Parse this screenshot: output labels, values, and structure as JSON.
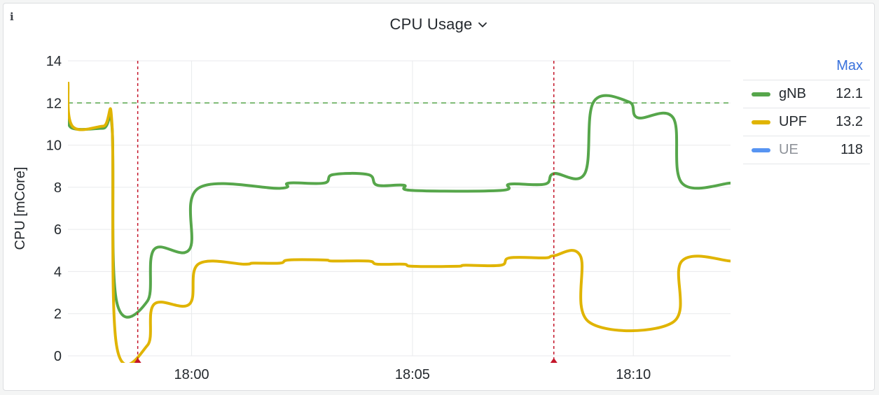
{
  "panel": {
    "title": "CPU Usage",
    "info_icon": "info-icon",
    "menu_icon": "chevron-down-icon"
  },
  "legend": {
    "header": "Max",
    "items": [
      {
        "name": "gNB",
        "value": "12.1",
        "color": "#56a64b",
        "dimmed": false
      },
      {
        "name": "UPF",
        "value": "13.2",
        "color": "#e0b400",
        "dimmed": false
      },
      {
        "name": "UE",
        "value": "118",
        "color": "#5794f2",
        "dimmed": true
      }
    ]
  },
  "chart_data": {
    "type": "line",
    "ylabel": "CPU [mCore]",
    "ylim": [
      0,
      14
    ],
    "yticks": [
      "0",
      "2",
      "4",
      "6",
      "8",
      "10",
      "12",
      "14"
    ],
    "xlim_minutes": [
      -2.8,
      12.2
    ],
    "xticks": [
      {
        "label": "18:00",
        "t": 0
      },
      {
        "label": "18:05",
        "t": 5
      },
      {
        "label": "18:10",
        "t": 10
      }
    ],
    "threshold": {
      "value": 12,
      "color": "#56a64b",
      "style": "dashed"
    },
    "annotations": [
      {
        "t": -1.22,
        "color": "#c4162a"
      },
      {
        "t": 8.2,
        "color": "#c4162a"
      }
    ],
    "series": [
      {
        "name": "gNB",
        "color": "#56a64b",
        "points": [
          [
            -2.8,
            11.5
          ],
          [
            -2.7,
            10.8
          ],
          [
            -2.0,
            10.8
          ],
          [
            -1.8,
            10.8
          ],
          [
            -1.7,
            2.6
          ],
          [
            -1.0,
            2.6
          ],
          [
            -0.85,
            5.05
          ],
          [
            -0.05,
            5.05
          ],
          [
            0.15,
            7.95
          ],
          [
            2.0,
            7.95
          ],
          [
            2.2,
            8.2
          ],
          [
            3.0,
            8.2
          ],
          [
            3.2,
            8.6
          ],
          [
            4.0,
            8.6
          ],
          [
            4.2,
            8.1
          ],
          [
            4.8,
            8.1
          ],
          [
            5.0,
            7.85
          ],
          [
            7.0,
            7.85
          ],
          [
            7.2,
            8.15
          ],
          [
            8.0,
            8.15
          ],
          [
            8.2,
            8.65
          ],
          [
            8.9,
            8.65
          ],
          [
            9.1,
            12.05
          ],
          [
            9.9,
            12.05
          ],
          [
            10.1,
            11.3
          ],
          [
            10.9,
            11.3
          ],
          [
            11.1,
            8.2
          ],
          [
            12.2,
            8.2
          ]
        ]
      },
      {
        "name": "UPF",
        "color": "#e0b400",
        "points": [
          [
            -2.8,
            13.0
          ],
          [
            -2.7,
            10.9
          ],
          [
            -2.0,
            10.9
          ],
          [
            -1.8,
            10.9
          ],
          [
            -1.7,
            0.5
          ],
          [
            -1.0,
            0.5
          ],
          [
            -0.85,
            2.45
          ],
          [
            -0.05,
            2.45
          ],
          [
            0.15,
            4.35
          ],
          [
            1.2,
            4.35
          ],
          [
            1.4,
            4.4
          ],
          [
            2.0,
            4.4
          ],
          [
            2.2,
            4.55
          ],
          [
            3.0,
            4.55
          ],
          [
            3.2,
            4.5
          ],
          [
            4.0,
            4.5
          ],
          [
            4.2,
            4.35
          ],
          [
            4.8,
            4.35
          ],
          [
            5.0,
            4.25
          ],
          [
            6.0,
            4.25
          ],
          [
            6.2,
            4.3
          ],
          [
            7.0,
            4.3
          ],
          [
            7.2,
            4.65
          ],
          [
            8.0,
            4.65
          ],
          [
            8.2,
            4.75
          ],
          [
            8.8,
            4.75
          ],
          [
            9.0,
            1.6
          ],
          [
            10.9,
            1.6
          ],
          [
            11.1,
            4.5
          ],
          [
            12.2,
            4.5
          ]
        ]
      }
    ]
  }
}
